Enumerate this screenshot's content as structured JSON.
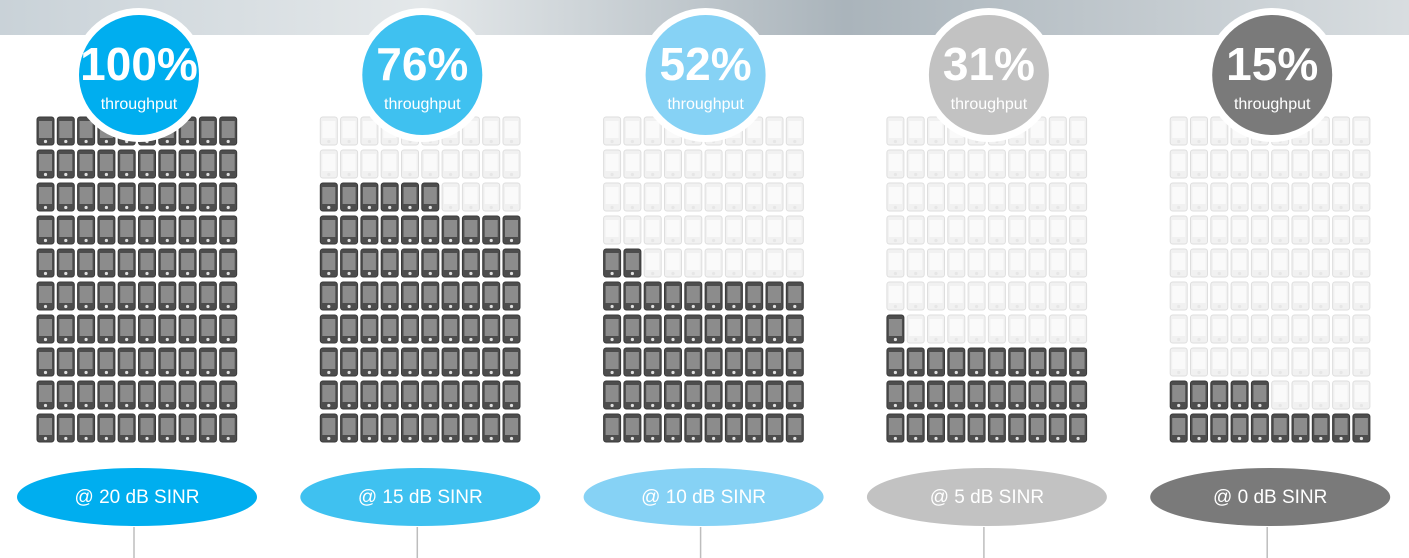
{
  "chart_data": {
    "type": "waffle",
    "categories": [
      "@ 20 dB SINR",
      "@ 15 dB SINR",
      "@ 10 dB SINR",
      "@ 5 dB SINR",
      "@ 0 dB SINR"
    ],
    "values": [
      100,
      76,
      52,
      31,
      15
    ],
    "value_labels": [
      "100%",
      "76%",
      "52%",
      "31%",
      "15%"
    ],
    "caption": "throughput",
    "colors": [
      "#00aeef",
      "#3fc1f0",
      "#86d2f5",
      "#c2c2c2",
      "#7a7a7a"
    ]
  }
}
